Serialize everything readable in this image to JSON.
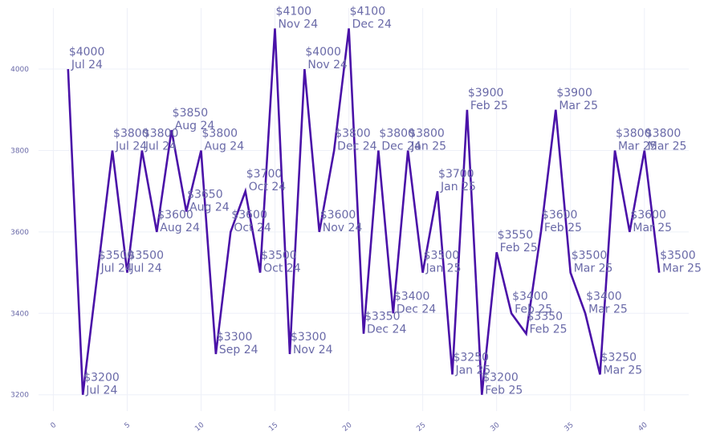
{
  "chart_data": {
    "type": "line",
    "title": "",
    "xlabel": "",
    "ylabel": "",
    "x": [
      1,
      2,
      3,
      4,
      5,
      6,
      7,
      8,
      9,
      10,
      11,
      12,
      13,
      14,
      15,
      16,
      17,
      18,
      19,
      20,
      21,
      22,
      23,
      24,
      25,
      26,
      27,
      28,
      29,
      30,
      31,
      32,
      33,
      34,
      35,
      36,
      37,
      38,
      39,
      40,
      41
    ],
    "series": [
      {
        "values": [
          4000,
          3200,
          3500,
          3800,
          3500,
          3800,
          3600,
          3850,
          3650,
          3800,
          3300,
          3600,
          3700,
          3500,
          4100,
          3300,
          4000,
          3600,
          3800,
          4100,
          3350,
          3800,
          3400,
          3800,
          3500,
          3700,
          3250,
          3900,
          3200,
          3550,
          3400,
          3350,
          3600,
          3900,
          3500,
          3400,
          3250,
          3800,
          3600,
          3800,
          3500
        ],
        "labels": [
          [
            "$4000",
            "Jul 24"
          ],
          [
            "$3200",
            "Jul 24"
          ],
          [
            "$3500",
            "Jul 24"
          ],
          [
            "$3800",
            "Jul 24"
          ],
          [
            "$3500",
            "Jul 24"
          ],
          [
            "$3800",
            "Jul 24"
          ],
          [
            "$3600",
            "Aug 24"
          ],
          [
            "$3850",
            "Aug 24"
          ],
          [
            "$3650",
            "Aug 24"
          ],
          [
            "$3800",
            "Aug 24"
          ],
          [
            "$3300",
            "Sep 24"
          ],
          [
            "$3600",
            "Oct 24"
          ],
          [
            "$3700",
            "Oct 24"
          ],
          [
            "$3500",
            "Oct 24"
          ],
          [
            "$4100",
            "Nov 24"
          ],
          [
            "$3300",
            "Nov 24"
          ],
          [
            "$4000",
            "Nov 24"
          ],
          [
            "$3600",
            "Nov 24"
          ],
          [
            "$3800",
            "Dec 24"
          ],
          [
            "$4100",
            "Dec 24"
          ],
          [
            "$3350",
            "Dec 24"
          ],
          [
            "$3800",
            "Dec 24"
          ],
          [
            "$3400",
            "Dec 24"
          ],
          [
            "$3800",
            "Jan 25"
          ],
          [
            "$3500",
            "Jan 25"
          ],
          [
            "$3700",
            "Jan 25"
          ],
          [
            "$3250",
            "Jan 25"
          ],
          [
            "$3900",
            "Feb 25"
          ],
          [
            "$3200",
            "Feb 25"
          ],
          [
            "$3550",
            "Feb 25"
          ],
          [
            "$3400",
            "Feb 25"
          ],
          [
            "$3350",
            "Feb 25"
          ],
          [
            "$3600",
            "Feb 25"
          ],
          [
            "$3900",
            "Mar 25"
          ],
          [
            "$3500",
            "Mar 25"
          ],
          [
            "$3400",
            "Mar 25"
          ],
          [
            "$3250",
            "Mar 25"
          ],
          [
            "$3800",
            "Mar 25"
          ],
          [
            "$3600",
            "Mar 25"
          ],
          [
            "$3800",
            "Mar 25"
          ],
          [
            "$3500",
            "Mar 25"
          ]
        ]
      }
    ],
    "xlim": [
      -1,
      43
    ],
    "ylim": [
      3160,
      4150
    ],
    "x_ticks": [
      "0",
      "5",
      "10",
      "15",
      "20",
      "25",
      "30",
      "35",
      "40"
    ],
    "y_ticks": [
      "3200",
      "3400",
      "3600",
      "3800",
      "4000"
    ],
    "grid": true,
    "legend": "none",
    "line_color": "#4a12a8",
    "label_color": "#6a6aa8"
  }
}
